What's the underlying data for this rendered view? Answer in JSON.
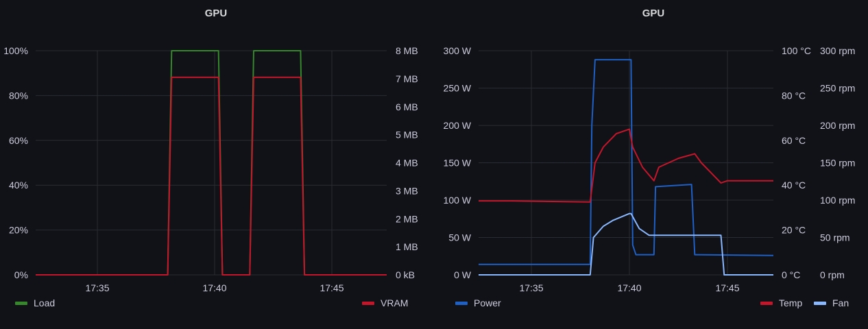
{
  "chart_data": [
    {
      "type": "line",
      "title": "GPU",
      "x_ticks": [
        "17:35",
        "17:40",
        "17:45"
      ],
      "y_left": {
        "ticks": [
          "0%",
          "20%",
          "40%",
          "60%",
          "80%",
          "100%"
        ],
        "range": [
          0,
          100
        ]
      },
      "y_right": {
        "ticks": [
          "0 kB",
          "1 MB",
          "2 MB",
          "3 MB",
          "4 MB",
          "5 MB",
          "6 MB",
          "7 MB",
          "8 MB"
        ],
        "range": [
          0,
          8
        ]
      },
      "grid": true,
      "series": [
        {
          "name": "Load",
          "color": "#37872d",
          "axis": "left",
          "x": [
            "17:32",
            "17:38",
            "17:38:10",
            "17:40:10",
            "17:40:20",
            "17:41:30",
            "17:41:40",
            "17:43:40",
            "17:43:50",
            "17:47:30"
          ],
          "values": [
            0,
            0,
            100,
            100,
            0,
            0,
            100,
            100,
            0,
            0
          ]
        },
        {
          "name": "VRAM",
          "color": "#c4162a",
          "axis": "right",
          "x": [
            "17:32",
            "17:38",
            "17:38:10",
            "17:40:10",
            "17:40:20",
            "17:41:30",
            "17:41:40",
            "17:43:40",
            "17:43:50",
            "17:47:30"
          ],
          "values": [
            0,
            0,
            7.05,
            7.05,
            0,
            0,
            7.05,
            7.05,
            0,
            0
          ]
        }
      ],
      "legend": {
        "left": [
          "Load"
        ],
        "right": [
          "VRAM"
        ],
        "placement": "bottom"
      }
    },
    {
      "type": "line",
      "title": "GPU",
      "x_ticks": [
        "17:35",
        "17:40",
        "17:45"
      ],
      "y_left": {
        "ticks": [
          "0 W",
          "50 W",
          "100 W",
          "150 W",
          "200 W",
          "250 W",
          "300 W"
        ],
        "range": [
          0,
          300
        ]
      },
      "y_right1": {
        "ticks": [
          "0 °C",
          "20 °C",
          "40 °C",
          "60 °C",
          "80 °C",
          "100 °C"
        ],
        "range": [
          0,
          100
        ]
      },
      "y_right2": {
        "ticks": [
          "0 rpm",
          "50 rpm",
          "100 rpm",
          "150 rpm",
          "200 rpm",
          "250 rpm",
          "300 rpm"
        ],
        "range": [
          0,
          300
        ]
      },
      "grid": true,
      "series": [
        {
          "name": "Power",
          "color": "#1f60c4",
          "axis": "left",
          "x": [
            "17:32",
            "17:38",
            "17:38:05",
            "17:38:15",
            "17:40:05",
            "17:40:10",
            "17:40:20",
            "17:41:15",
            "17:41:20",
            "17:43:10",
            "17:43:20",
            "17:47:30"
          ],
          "values": [
            14,
            14,
            200,
            288,
            288,
            40,
            27,
            27,
            118,
            121,
            27,
            26
          ]
        },
        {
          "name": "Temp",
          "color": "#c4162a",
          "axis": "right1",
          "x": [
            "17:32",
            "17:34",
            "17:38",
            "17:38:15",
            "17:38:40",
            "17:39:20",
            "17:40",
            "17:40:10",
            "17:40:40",
            "17:41:15",
            "17:41:30",
            "17:42:30",
            "17:43:20",
            "17:43:40",
            "17:44:40",
            "17:45",
            "17:47:30"
          ],
          "values": [
            33,
            33,
            32.5,
            50,
            57,
            63,
            65,
            57,
            48,
            42,
            48,
            52,
            54,
            50,
            41,
            42,
            42
          ]
        },
        {
          "name": "Fan",
          "color": "#8ab8ff",
          "axis": "right2",
          "x": [
            "17:32",
            "17:38",
            "17:38:10",
            "17:38:40",
            "17:39:10",
            "17:40",
            "17:40:05",
            "17:40:30",
            "17:41",
            "17:43:30",
            "17:44:40",
            "17:44:50",
            "17:47:30"
          ],
          "values": [
            0,
            0,
            50,
            65,
            73,
            82,
            82,
            62,
            53,
            53,
            53,
            0,
            0
          ]
        }
      ],
      "legend": {
        "left": [
          "Power"
        ],
        "right": [
          "Temp",
          "Fan"
        ],
        "placement": "bottom"
      }
    }
  ]
}
